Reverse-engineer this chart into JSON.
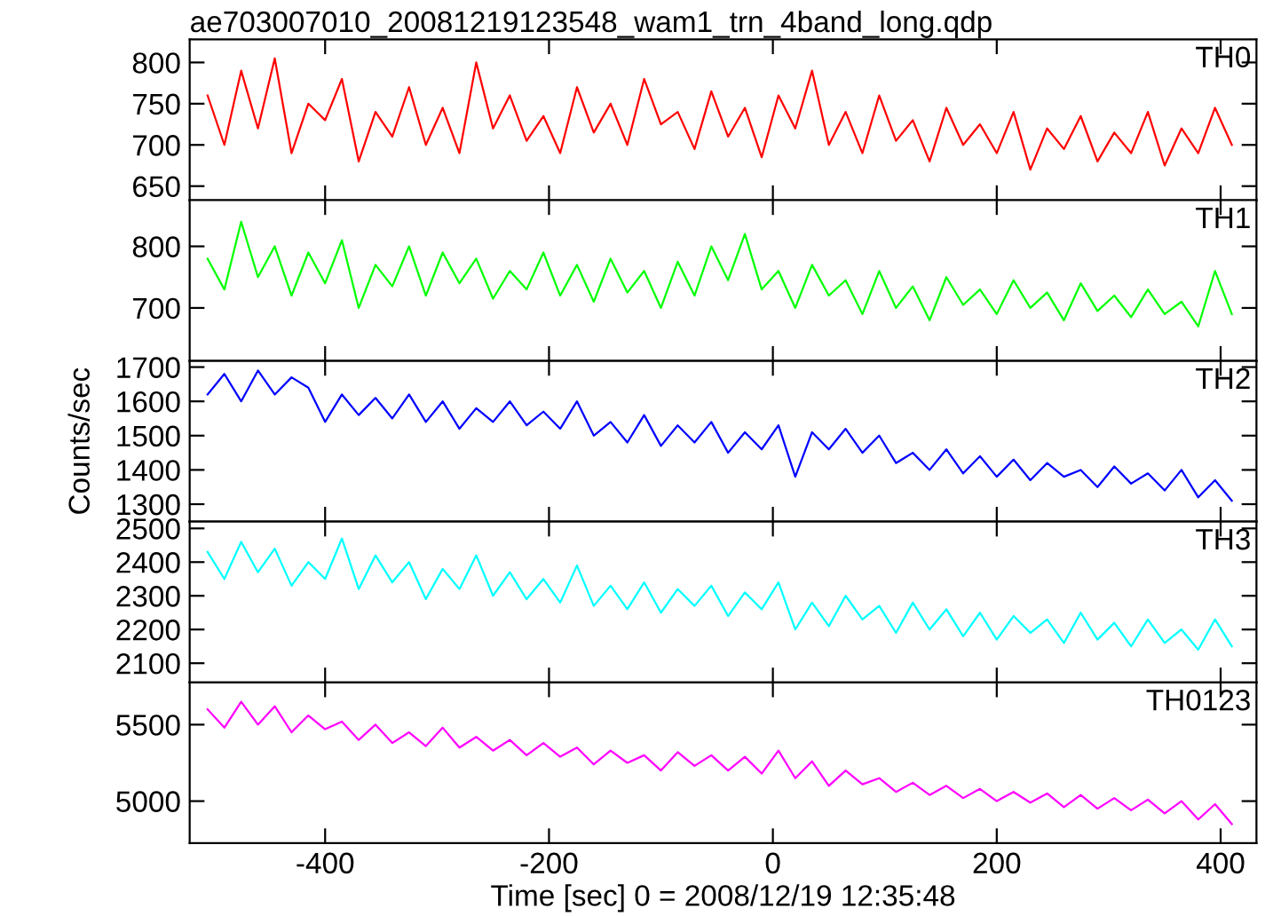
{
  "chart_data": [
    {
      "type": "line",
      "title": "ae703007010_20081219123548_wam1_trn_4band_long.qdp",
      "tick_labels": "y",
      "grid": false,
      "xlim": [
        -521,
        432
      ],
      "xticks": [
        -400,
        -200,
        0,
        200,
        400
      ],
      "ylim": [
        633,
        828
      ],
      "yticks": [
        650,
        700,
        750,
        800
      ],
      "x": [
        -505,
        -490,
        -475,
        -460,
        -445,
        -430,
        -415,
        -400,
        -385,
        -370,
        -355,
        -340,
        -325,
        -310,
        -295,
        -280,
        -265,
        -250,
        -235,
        -220,
        -205,
        -190,
        -175,
        -160,
        -145,
        -130,
        -115,
        -100,
        -85,
        -70,
        -55,
        -40,
        -25,
        -10,
        5,
        20,
        35,
        50,
        65,
        80,
        95,
        110,
        125,
        140,
        155,
        170,
        185,
        200,
        215,
        230,
        245,
        260,
        275,
        290,
        305,
        320,
        335,
        350,
        365,
        380,
        395,
        410
      ],
      "series": [
        {
          "name": "TH0",
          "color": "#ff0000",
          "values": [
            760,
            700,
            790,
            720,
            805,
            690,
            750,
            730,
            780,
            680,
            740,
            710,
            770,
            700,
            745,
            690,
            800,
            720,
            760,
            705,
            735,
            690,
            770,
            715,
            750,
            700,
            780,
            725,
            740,
            695,
            765,
            710,
            745,
            685,
            760,
            720,
            790,
            700,
            740,
            690,
            760,
            705,
            730,
            680,
            745,
            700,
            725,
            690,
            740,
            670,
            720,
            695,
            735,
            680,
            715,
            690,
            740,
            675,
            720,
            690,
            745,
            700
          ]
        }
      ]
    },
    {
      "type": "line",
      "tick_labels": "y",
      "grid": false,
      "xlim": [
        -521,
        432
      ],
      "xticks": [
        -400,
        -200,
        0,
        200,
        400
      ],
      "ylim": [
        614,
        875
      ],
      "yticks": [
        700,
        800
      ],
      "x": [
        -505,
        -490,
        -475,
        -460,
        -445,
        -430,
        -415,
        -400,
        -385,
        -370,
        -355,
        -340,
        -325,
        -310,
        -295,
        -280,
        -265,
        -250,
        -235,
        -220,
        -205,
        -190,
        -175,
        -160,
        -145,
        -130,
        -115,
        -100,
        -85,
        -70,
        -55,
        -40,
        -25,
        -10,
        5,
        20,
        35,
        50,
        65,
        80,
        95,
        110,
        125,
        140,
        155,
        170,
        185,
        200,
        215,
        230,
        245,
        260,
        275,
        290,
        305,
        320,
        335,
        350,
        365,
        380,
        395,
        410
      ],
      "series": [
        {
          "name": "TH1",
          "color": "#00ff00",
          "values": [
            780,
            730,
            840,
            750,
            800,
            720,
            790,
            740,
            810,
            700,
            770,
            735,
            800,
            720,
            790,
            740,
            780,
            715,
            760,
            730,
            790,
            720,
            770,
            710,
            780,
            725,
            760,
            700,
            775,
            720,
            800,
            745,
            820,
            730,
            760,
            700,
            770,
            720,
            745,
            690,
            760,
            700,
            735,
            680,
            750,
            705,
            730,
            690,
            745,
            700,
            725,
            680,
            740,
            695,
            720,
            685,
            730,
            690,
            710,
            670,
            760,
            690
          ]
        }
      ]
    },
    {
      "type": "line",
      "ylabel": "Counts/sec",
      "tick_labels": "y",
      "grid": false,
      "xlim": [
        -521,
        432
      ],
      "xticks": [
        -400,
        -200,
        0,
        200,
        400
      ],
      "ylim": [
        1249,
        1718
      ],
      "yticks": [
        1300,
        1400,
        1500,
        1600,
        1700
      ],
      "x": [
        -505,
        -490,
        -475,
        -460,
        -445,
        -430,
        -415,
        -400,
        -385,
        -370,
        -355,
        -340,
        -325,
        -310,
        -295,
        -280,
        -265,
        -250,
        -235,
        -220,
        -205,
        -190,
        -175,
        -160,
        -145,
        -130,
        -115,
        -100,
        -85,
        -70,
        -55,
        -40,
        -25,
        -10,
        5,
        20,
        35,
        50,
        65,
        80,
        95,
        110,
        125,
        140,
        155,
        170,
        185,
        200,
        215,
        230,
        245,
        260,
        275,
        290,
        305,
        320,
        335,
        350,
        365,
        380,
        395,
        410
      ],
      "series": [
        {
          "name": "TH2",
          "color": "#0000ff",
          "values": [
            1620,
            1680,
            1600,
            1690,
            1620,
            1670,
            1640,
            1540,
            1620,
            1560,
            1610,
            1550,
            1620,
            1540,
            1600,
            1520,
            1580,
            1540,
            1600,
            1530,
            1570,
            1520,
            1600,
            1500,
            1540,
            1480,
            1560,
            1470,
            1530,
            1480,
            1540,
            1450,
            1510,
            1460,
            1530,
            1380,
            1510,
            1460,
            1520,
            1450,
            1500,
            1420,
            1450,
            1400,
            1460,
            1390,
            1440,
            1380,
            1430,
            1370,
            1420,
            1380,
            1400,
            1350,
            1410,
            1360,
            1390,
            1340,
            1400,
            1320,
            1370,
            1310
          ]
        }
      ]
    },
    {
      "type": "line",
      "tick_labels": "y",
      "grid": false,
      "xlim": [
        -521,
        432
      ],
      "xticks": [
        -400,
        -200,
        0,
        200,
        400
      ],
      "ylim": [
        2043,
        2520
      ],
      "yticks": [
        2100,
        2200,
        2300,
        2400,
        2500
      ],
      "x": [
        -505,
        -490,
        -475,
        -460,
        -445,
        -430,
        -415,
        -400,
        -385,
        -370,
        -355,
        -340,
        -325,
        -310,
        -295,
        -280,
        -265,
        -250,
        -235,
        -220,
        -205,
        -190,
        -175,
        -160,
        -145,
        -130,
        -115,
        -100,
        -85,
        -70,
        -55,
        -40,
        -25,
        -10,
        5,
        20,
        35,
        50,
        65,
        80,
        95,
        110,
        125,
        140,
        155,
        170,
        185,
        200,
        215,
        230,
        245,
        260,
        275,
        290,
        305,
        320,
        335,
        350,
        365,
        380,
        395,
        410
      ],
      "series": [
        {
          "name": "TH3",
          "color": "#00ffff",
          "values": [
            2430,
            2350,
            2460,
            2370,
            2440,
            2330,
            2400,
            2350,
            2470,
            2320,
            2420,
            2340,
            2400,
            2290,
            2380,
            2320,
            2420,
            2300,
            2370,
            2290,
            2350,
            2280,
            2390,
            2270,
            2330,
            2260,
            2340,
            2250,
            2320,
            2270,
            2330,
            2240,
            2310,
            2260,
            2340,
            2200,
            2280,
            2210,
            2300,
            2230,
            2270,
            2190,
            2280,
            2200,
            2260,
            2180,
            2250,
            2170,
            2240,
            2190,
            2230,
            2160,
            2250,
            2170,
            2220,
            2150,
            2230,
            2160,
            2200,
            2140,
            2230,
            2150
          ]
        }
      ]
    },
    {
      "type": "line",
      "xlabel": "Time [sec] 0 = 2008/12/19 12:35:48",
      "grid": false,
      "xlim": [
        -521,
        432
      ],
      "xticks": [
        -400,
        -200,
        0,
        200,
        400
      ],
      "ylim": [
        4725,
        5776
      ],
      "yticks": [
        5000,
        5500
      ],
      "x": [
        -505,
        -490,
        -475,
        -460,
        -445,
        -430,
        -415,
        -400,
        -385,
        -370,
        -355,
        -340,
        -325,
        -310,
        -295,
        -280,
        -265,
        -250,
        -235,
        -220,
        -205,
        -190,
        -175,
        -160,
        -145,
        -130,
        -115,
        -100,
        -85,
        -70,
        -55,
        -40,
        -25,
        -10,
        5,
        20,
        35,
        50,
        65,
        80,
        95,
        110,
        125,
        140,
        155,
        170,
        185,
        200,
        215,
        230,
        245,
        260,
        275,
        290,
        305,
        320,
        335,
        350,
        365,
        380,
        395,
        410
      ],
      "series": [
        {
          "name": "TH0123",
          "color": "#ff00ff",
          "values": [
            5600,
            5480,
            5650,
            5500,
            5620,
            5450,
            5560,
            5470,
            5520,
            5400,
            5500,
            5380,
            5450,
            5360,
            5480,
            5350,
            5420,
            5330,
            5400,
            5300,
            5380,
            5290,
            5350,
            5240,
            5330,
            5250,
            5300,
            5200,
            5320,
            5230,
            5300,
            5200,
            5290,
            5180,
            5330,
            5150,
            5260,
            5100,
            5200,
            5110,
            5150,
            5060,
            5120,
            5040,
            5100,
            5020,
            5080,
            5000,
            5060,
            4990,
            5050,
            4960,
            5040,
            4950,
            5020,
            4940,
            5010,
            4920,
            5000,
            4880,
            4980,
            4850
          ]
        }
      ]
    }
  ]
}
